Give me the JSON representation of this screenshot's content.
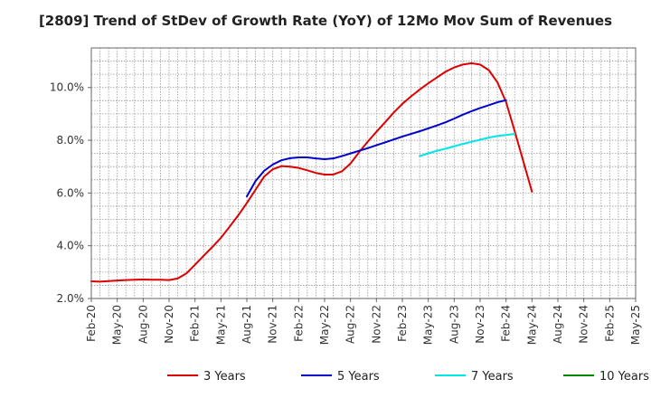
{
  "chart_data": {
    "type": "line",
    "title": "[2809]  Trend of StDev of Growth Rate (YoY) of 12Mo Mov Sum of Revenues",
    "xlabel": "",
    "ylabel": "",
    "ylim": [
      2.0,
      11.5
    ],
    "y_ticks": [
      2.0,
      4.0,
      6.0,
      8.0,
      10.0
    ],
    "y_tick_labels": [
      "2.0%",
      "4.0%",
      "6.0%",
      "8.0%",
      "10.0%"
    ],
    "x_tick_labels": [
      "Feb-20",
      "May-20",
      "Aug-20",
      "Nov-20",
      "Feb-21",
      "May-21",
      "Aug-21",
      "Nov-21",
      "Feb-22",
      "May-22",
      "Aug-22",
      "Nov-22",
      "Feb-23",
      "May-23",
      "Aug-23",
      "Nov-23",
      "Feb-24",
      "May-24",
      "Aug-24",
      "Nov-24",
      "Feb-25",
      "May-25"
    ],
    "grid": true,
    "legend_position": "bottom",
    "series": [
      {
        "name": "3 Years",
        "color": "#dd0000",
        "start_index": 0,
        "values": [
          2.65,
          2.64,
          2.66,
          2.68,
          2.7,
          2.71,
          2.72,
          2.71,
          2.71,
          2.7,
          2.76,
          2.95,
          3.28,
          3.62,
          3.95,
          4.3,
          4.72,
          5.15,
          5.62,
          6.12,
          6.62,
          6.9,
          7.02,
          7.0,
          6.95,
          6.86,
          6.76,
          6.7,
          6.7,
          6.82,
          7.12,
          7.55,
          7.95,
          8.32,
          8.68,
          9.05,
          9.38,
          9.66,
          9.92,
          10.16,
          10.38,
          10.6,
          10.76,
          10.87,
          10.92,
          10.87,
          10.66,
          10.2,
          9.45,
          8.35,
          7.2,
          6.05
        ]
      },
      {
        "name": "5 Years",
        "color": "#0000cc",
        "start_index": 18,
        "values": [
          5.87,
          6.45,
          6.84,
          7.08,
          7.24,
          7.32,
          7.35,
          7.35,
          7.31,
          7.28,
          7.31,
          7.4,
          7.5,
          7.6,
          7.7,
          7.81,
          7.92,
          8.03,
          8.14,
          8.24,
          8.34,
          8.45,
          8.56,
          8.68,
          8.82,
          8.97,
          9.1,
          9.22,
          9.33,
          9.44,
          9.52
        ]
      },
      {
        "name": "7 Years",
        "color": "#00e5e5",
        "start_index": 38,
        "values": [
          7.4,
          7.5,
          7.6,
          7.68,
          7.77,
          7.86,
          7.94,
          8.02,
          8.1,
          8.16,
          8.2,
          8.24
        ]
      },
      {
        "name": "10 Years",
        "color": "#008800",
        "start_index": 0,
        "values": []
      }
    ]
  }
}
